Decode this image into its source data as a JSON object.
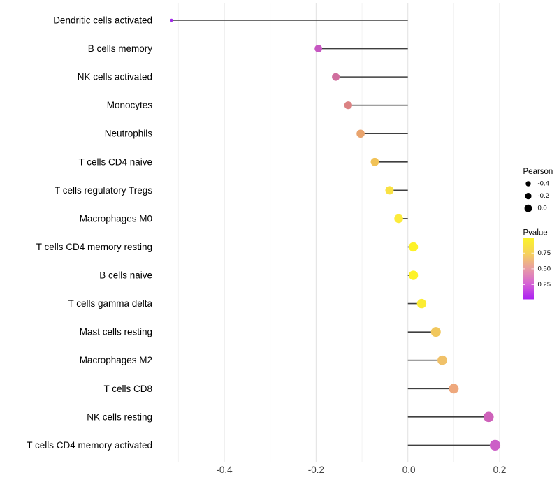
{
  "chart_data": {
    "type": "scatter",
    "variant": "horizontal_lollipop",
    "title": "",
    "xlabel": "",
    "ylabel": "",
    "xlim": [
      -0.555,
      0.225
    ],
    "baseline_x": 0.0,
    "grid": "vertical-only",
    "x_major_ticks": [
      -0.4,
      -0.2,
      0.0,
      0.2
    ],
    "x_major_tick_labels": [
      "-0.4",
      "-0.2",
      "0.0",
      "0.2"
    ],
    "x_minor_ticks": [
      -0.5,
      -0.3,
      -0.1,
      0.1
    ],
    "rows": [
      {
        "label": "Dendritic cells activated",
        "pearson": -0.515,
        "dot_color": "#A228EA",
        "dot_radius": 2.2
      },
      {
        "label": "B cells memory",
        "pearson": -0.195,
        "dot_color": "#C657C1",
        "dot_radius": 5.4
      },
      {
        "label": "NK cells activated",
        "pearson": -0.157,
        "dot_color": "#D06F9E",
        "dot_radius": 5.5
      },
      {
        "label": "Monocytes",
        "pearson": -0.13,
        "dot_color": "#DB8283",
        "dot_radius": 5.6
      },
      {
        "label": "Neutrophils",
        "pearson": -0.103,
        "dot_color": "#E9A46E",
        "dot_radius": 5.8
      },
      {
        "label": "T cells CD4 naive",
        "pearson": -0.072,
        "dot_color": "#F1C257",
        "dot_radius": 5.9
      },
      {
        "label": "T cells regulatory  Tregs",
        "pearson": -0.04,
        "dot_color": "#F9E143",
        "dot_radius": 6.0
      },
      {
        "label": "Macrophages M0",
        "pearson": -0.02,
        "dot_color": "#FCEB3B",
        "dot_radius": 6.3
      },
      {
        "label": "T cells CD4 memory resting",
        "pearson": 0.012,
        "dot_color": "#FDF228",
        "dot_radius": 6.7
      },
      {
        "label": "B cells naive",
        "pearson": 0.012,
        "dot_color": "#FDF228",
        "dot_radius": 6.7
      },
      {
        "label": "T cells gamma delta",
        "pearson": 0.03,
        "dot_color": "#FBEC33",
        "dot_radius": 6.7
      },
      {
        "label": "Mast cells resting",
        "pearson": 0.061,
        "dot_color": "#F1C75C",
        "dot_radius": 7.0
      },
      {
        "label": "Macrophages M2",
        "pearson": 0.075,
        "dot_color": "#F0C169",
        "dot_radius": 6.9
      },
      {
        "label": "T cells CD8",
        "pearson": 0.1,
        "dot_color": "#EEA87D",
        "dot_radius": 7.0
      },
      {
        "label": "NK cells resting",
        "pearson": 0.176,
        "dot_color": "#CE62BA",
        "dot_radius": 7.3
      },
      {
        "label": "T cells CD4 memory activated",
        "pearson": 0.19,
        "dot_color": "#CC5FC7",
        "dot_radius": 7.6
      }
    ],
    "legend_size": {
      "title": "Pearson",
      "dot_color": "#000000",
      "entries": [
        {
          "label": "-0.4",
          "radius": 3.7
        },
        {
          "label": "-0.2",
          "radius": 4.6
        },
        {
          "label": "0.0",
          "radius": 5.4
        }
      ]
    },
    "legend_color": {
      "title": "Pvalue",
      "tick_labels": [
        "0.75",
        "0.50",
        "0.25"
      ],
      "gradient_stops": [
        {
          "offset": 0.0,
          "color": "#FBF428"
        },
        {
          "offset": 0.25,
          "color": "#F6D25B"
        },
        {
          "offset": 0.5,
          "color": "#E89DA4"
        },
        {
          "offset": 0.75,
          "color": "#D562D5"
        },
        {
          "offset": 1.0,
          "color": "#AB20F2"
        }
      ]
    },
    "colors": {
      "stem": "#3F3F3F",
      "grid_major": "#E4E4E4",
      "grid_minor": "#F2F2F2",
      "axis_text": "#404040",
      "label_text": "#000000",
      "legend_text": "#000000",
      "background": "#FFFFFF"
    }
  }
}
